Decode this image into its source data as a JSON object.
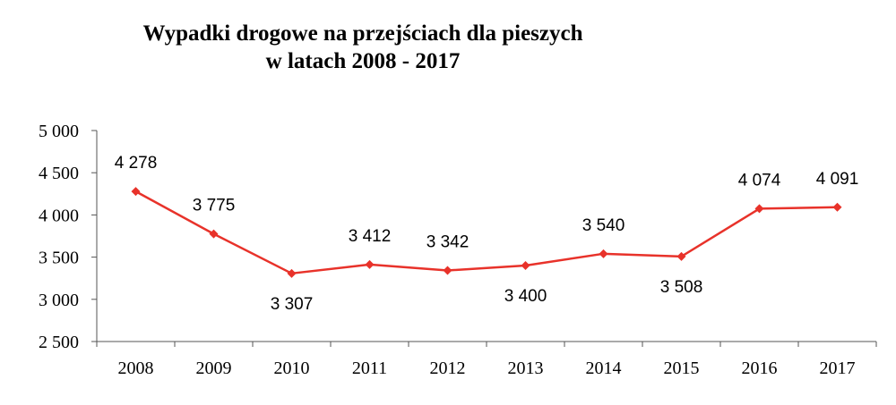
{
  "chart_data": {
    "type": "line",
    "title_line1": "Wypadki drogowe na przejściach dla pieszych",
    "title_line2": "w latach 2008 - 2017",
    "xlabel": "",
    "ylabel": "",
    "categories": [
      "2008",
      "2009",
      "2010",
      "2011",
      "2012",
      "2013",
      "2014",
      "2015",
      "2016",
      "2017"
    ],
    "series": [
      {
        "values": [
          4278,
          3775,
          3307,
          3412,
          3342,
          3400,
          3540,
          3508,
          4074,
          4091
        ],
        "labels": [
          "4 278",
          "3 775",
          "3 307",
          "3 412",
          "3 342",
          "3 400",
          "3 540",
          "3 508",
          "4 074",
          "4 091"
        ],
        "label_positions": [
          "above",
          "above",
          "below",
          "above",
          "above",
          "below",
          "above",
          "below",
          "above",
          "above"
        ],
        "color": "#e8322a"
      }
    ],
    "ylim": [
      2500,
      5000
    ],
    "yticks": [
      2500,
      3000,
      3500,
      4000,
      4500,
      5000
    ],
    "ytick_labels": [
      "2 500",
      "3 000",
      "3 500",
      "4 000",
      "4 500",
      "5 000"
    ],
    "grid": false,
    "legend": "none"
  }
}
